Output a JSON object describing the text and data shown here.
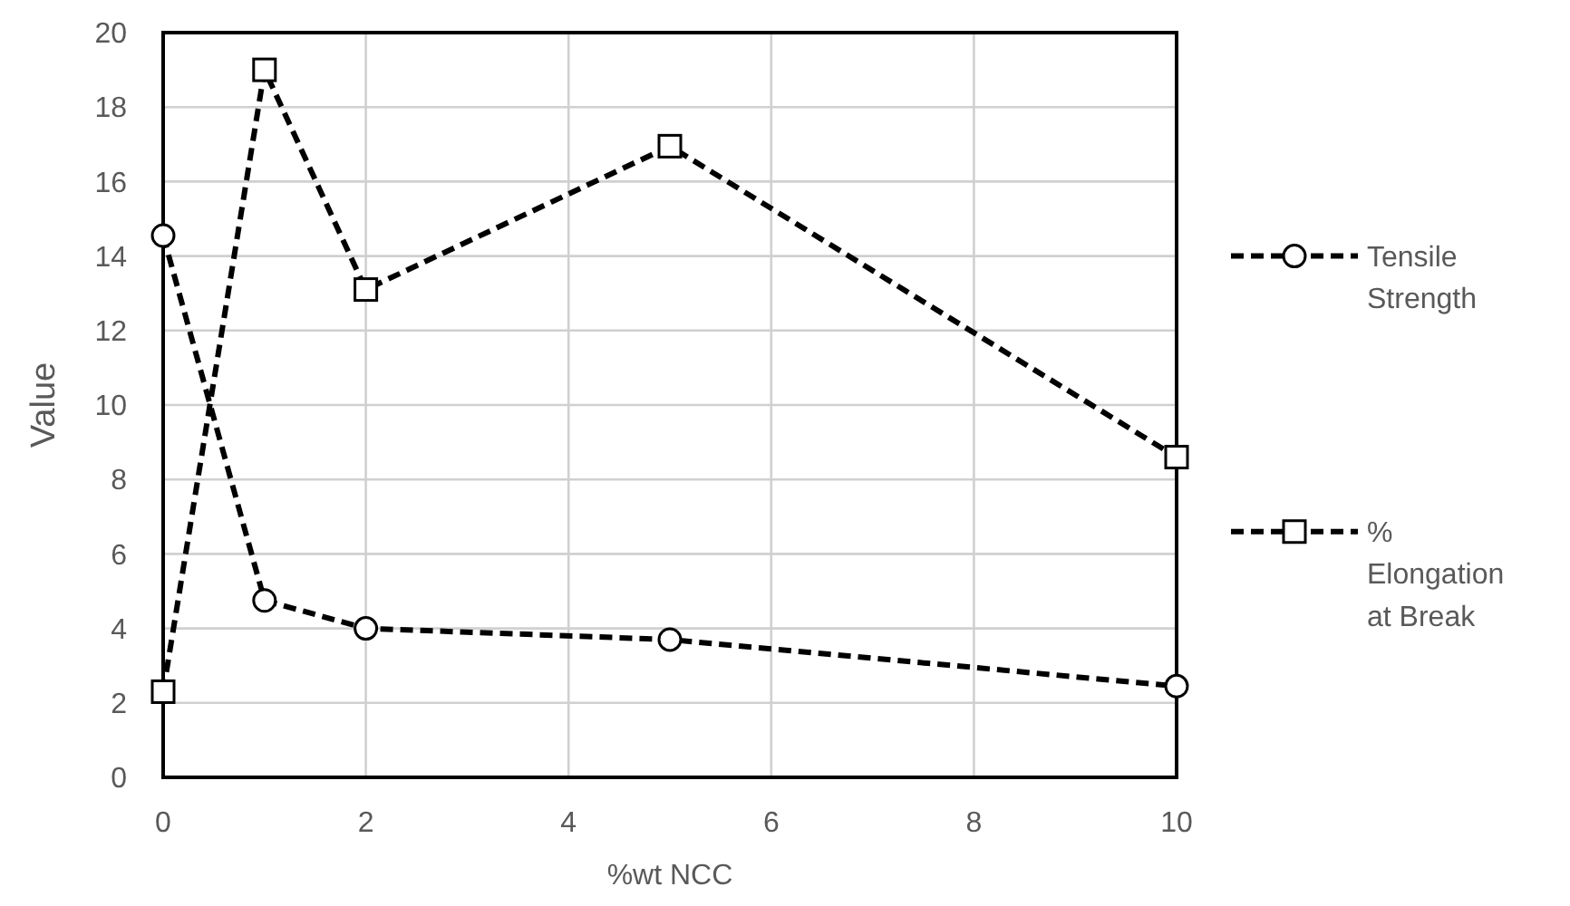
{
  "chart_data": {
    "type": "line",
    "xlabel": "%wt NCC",
    "ylabel": "Value",
    "x": [
      0,
      1,
      2,
      5,
      10
    ],
    "series": [
      {
        "name": "Tensile Strength",
        "color": "#000000",
        "marker": "circle",
        "values": [
          14.55,
          4.75,
          4.0,
          3.7,
          2.45
        ]
      },
      {
        "name": "% Elongation at Break",
        "color": "#000000",
        "marker": "square",
        "values": [
          2.3,
          19.0,
          13.1,
          16.95,
          8.6
        ]
      }
    ],
    "xlim": [
      0,
      10
    ],
    "xticks": [
      0,
      2,
      4,
      6,
      8,
      10
    ],
    "ylim": [
      0,
      20
    ],
    "yticks": [
      0,
      2,
      4,
      6,
      8,
      10,
      12,
      14,
      16,
      18,
      20
    ],
    "grid": true,
    "legend": "right",
    "line_style": "dashed"
  }
}
